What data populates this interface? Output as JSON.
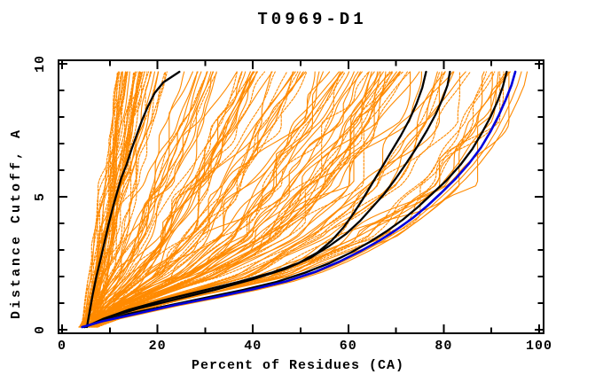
{
  "window": {
    "title": "T0969-D1 accuracy plot"
  },
  "chart_data": {
    "type": "line",
    "title": "T0969-D1",
    "xlabel": "Percent of Residues (CA)",
    "ylabel": "Distance Cutoff, A",
    "xlim": [
      0,
      100
    ],
    "ylim": [
      0,
      10
    ],
    "grid": false,
    "legend": "none",
    "x_major_ticks": [
      0,
      20,
      40,
      60,
      80,
      100
    ],
    "x_minor_ticks": [
      10,
      30,
      50,
      70,
      90
    ],
    "x_tick_labels": [
      "0",
      "20",
      "40",
      "60",
      "80",
      "100"
    ],
    "y_major_ticks": [
      0,
      5,
      10
    ],
    "y_minor_ticks": [
      1,
      2,
      3,
      4,
      6,
      7,
      8,
      9
    ],
    "y_tick_labels": [
      "0",
      "5",
      "10"
    ],
    "colors": {
      "ensemble": "#ff8a00",
      "highlight": "#000000",
      "reference": "#0000dd",
      "frame": "#000000",
      "background": "#ffffff"
    },
    "series": [
      {
        "name": "black-model-1",
        "color": "#000000",
        "width": 2.3,
        "points": [
          [
            5.2,
            0.1
          ],
          [
            5.8,
            0.7
          ],
          [
            6.4,
            1.3
          ],
          [
            7.2,
            2.0
          ],
          [
            8.0,
            2.6
          ],
          [
            8.9,
            3.3
          ],
          [
            9.8,
            4.0
          ],
          [
            10.8,
            4.7
          ],
          [
            11.6,
            5.2
          ],
          [
            12.4,
            5.7
          ],
          [
            13.5,
            6.2
          ],
          [
            14.6,
            6.8
          ],
          [
            15.6,
            7.3
          ],
          [
            16.8,
            7.9
          ],
          [
            18.0,
            8.4
          ],
          [
            19.4,
            8.9
          ],
          [
            21.2,
            9.3
          ],
          [
            24.6,
            9.7
          ]
        ]
      },
      {
        "name": "black-model-2",
        "color": "#000000",
        "width": 2.3,
        "points": [
          [
            4.8,
            0.1
          ],
          [
            8.5,
            0.4
          ],
          [
            14,
            0.75
          ],
          [
            21,
            1.1
          ],
          [
            29,
            1.45
          ],
          [
            37,
            1.8
          ],
          [
            44,
            2.15
          ],
          [
            49.5,
            2.5
          ],
          [
            53.5,
            2.9
          ],
          [
            56.5,
            3.35
          ],
          [
            59,
            3.85
          ],
          [
            61,
            4.35
          ],
          [
            63,
            4.9
          ],
          [
            65,
            5.5
          ],
          [
            67,
            6.1
          ],
          [
            69,
            6.7
          ],
          [
            71,
            7.3
          ],
          [
            72.8,
            7.9
          ],
          [
            74.3,
            8.5
          ],
          [
            75.5,
            9.1
          ],
          [
            76.3,
            9.7
          ]
        ]
      },
      {
        "name": "black-model-3",
        "color": "#000000",
        "width": 2.3,
        "points": [
          [
            4.8,
            0.1
          ],
          [
            9.5,
            0.45
          ],
          [
            16,
            0.8
          ],
          [
            24,
            1.15
          ],
          [
            32,
            1.5
          ],
          [
            40,
            1.9
          ],
          [
            47,
            2.3
          ],
          [
            52,
            2.7
          ],
          [
            56,
            3.15
          ],
          [
            59.5,
            3.6
          ],
          [
            62.5,
            4.1
          ],
          [
            65,
            4.6
          ],
          [
            67.5,
            5.1
          ],
          [
            70,
            5.7
          ],
          [
            72.3,
            6.3
          ],
          [
            74.5,
            6.9
          ],
          [
            76.5,
            7.5
          ],
          [
            78.3,
            8.1
          ],
          [
            79.8,
            8.7
          ],
          [
            80.8,
            9.2
          ],
          [
            81.3,
            9.7
          ]
        ]
      },
      {
        "name": "black-model-4",
        "color": "#000000",
        "width": 2.3,
        "points": [
          [
            4.5,
            0.1
          ],
          [
            8,
            0.3
          ],
          [
            14,
            0.6
          ],
          [
            22,
            0.9
          ],
          [
            30,
            1.2
          ],
          [
            38,
            1.5
          ],
          [
            45,
            1.8
          ],
          [
            51,
            2.15
          ],
          [
            56,
            2.5
          ],
          [
            60.5,
            2.9
          ],
          [
            64.5,
            3.3
          ],
          [
            68,
            3.7
          ],
          [
            71.5,
            4.15
          ],
          [
            74.5,
            4.6
          ],
          [
            77.5,
            5.1
          ],
          [
            80.5,
            5.6
          ],
          [
            83.5,
            6.2
          ],
          [
            86,
            6.8
          ],
          [
            88,
            7.4
          ],
          [
            89.8,
            8.0
          ],
          [
            91.3,
            8.6
          ],
          [
            92.4,
            9.15
          ],
          [
            93.2,
            9.7
          ]
        ]
      },
      {
        "name": "blue-reference",
        "color": "#0000dd",
        "width": 2.6,
        "points": [
          [
            4.2,
            0.1
          ],
          [
            8.5,
            0.32
          ],
          [
            15,
            0.58
          ],
          [
            23.5,
            0.92
          ],
          [
            32,
            1.22
          ],
          [
            40,
            1.52
          ],
          [
            47,
            1.82
          ],
          [
            53,
            2.17
          ],
          [
            58,
            2.55
          ],
          [
            62.5,
            2.95
          ],
          [
            66.5,
            3.35
          ],
          [
            70,
            3.75
          ],
          [
            73.5,
            4.2
          ],
          [
            76.5,
            4.65
          ],
          [
            79.5,
            5.15
          ],
          [
            82.5,
            5.68
          ],
          [
            85.3,
            6.25
          ],
          [
            87.8,
            6.85
          ],
          [
            89.8,
            7.45
          ],
          [
            91.5,
            8.05
          ],
          [
            93,
            8.65
          ],
          [
            94.2,
            9.2
          ],
          [
            95,
            9.7
          ]
        ]
      }
    ],
    "orange_ensemble": {
      "description": "dense fan of server-model curves, all starting near x=3.5-7.5 at cutoff 0 and ending at cutoff 9.7 between x=10 and x=96.5",
      "color": "#ff8a00",
      "width": 1.1,
      "start_x_range": [
        3.5,
        7.5
      ],
      "top_y": 9.7,
      "seed": 1337,
      "clusters": [
        {
          "center": 14,
          "spread": 3.5,
          "weight": 30
        },
        {
          "center": 19,
          "spread": 3.0,
          "weight": 14
        },
        {
          "center": 29,
          "spread": 4.0,
          "weight": 13
        },
        {
          "center": 40,
          "spread": 5.0,
          "weight": 18
        },
        {
          "center": 52,
          "spread": 5.0,
          "weight": 14
        },
        {
          "center": 63,
          "spread": 5.0,
          "weight": 20
        },
        {
          "center": 72,
          "spread": 4.0,
          "weight": 14
        },
        {
          "center": 82,
          "spread": 4.0,
          "weight": 10
        },
        {
          "center": 90,
          "spread": 4.0,
          "weight": 12
        }
      ],
      "envelope_offsets": [
        1.3,
        2.8
      ]
    }
  }
}
